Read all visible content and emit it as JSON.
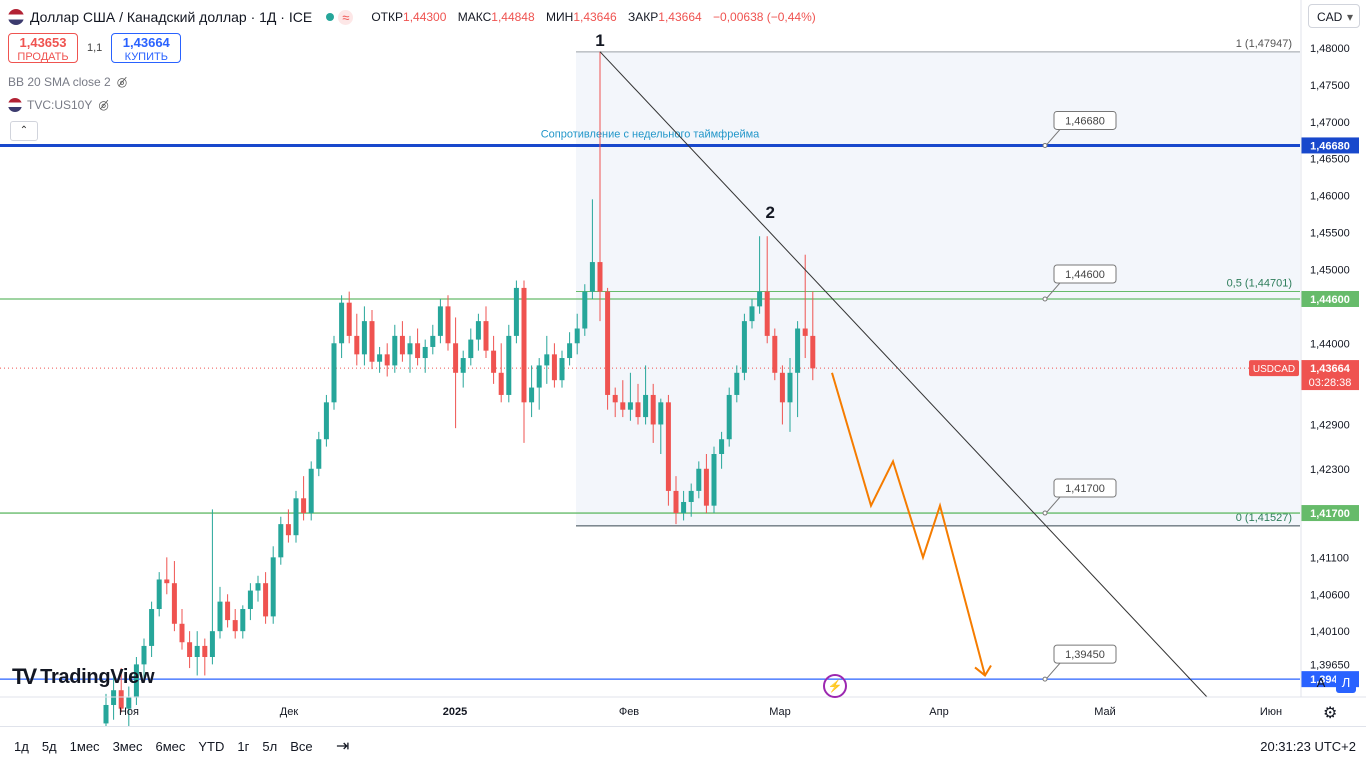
{
  "header": {
    "symbol_title": "Доллар США / Канадский доллар · 1Д · ICE",
    "open_label": "ОТКР",
    "open": "1,44300",
    "high_label": "МАКС",
    "high": "1,44848",
    "low_label": "МИН",
    "low": "1,43646",
    "close_label": "ЗАКР",
    "close": "1,43664",
    "change": "−0,00638 (−0,44%)"
  },
  "trade": {
    "sell_price": "1,43653",
    "sell_label": "ПРОДАТЬ",
    "spread": "1,1",
    "buy_price": "1,43664",
    "buy_label": "КУПИТЬ"
  },
  "indicators": [
    "BB 20 SMA close 2",
    "TVC:US10Y"
  ],
  "currency_select": "CAD",
  "logo": "TradingView",
  "timeframes": [
    "1д",
    "5д",
    "1мес",
    "3мес",
    "6мес",
    "YTD",
    "1г",
    "5л",
    "Все"
  ],
  "clock": "20:31:23 UTC+2",
  "axis_buttons": {
    "auto": "A",
    "log": "Л"
  },
  "chart_data": {
    "type": "candlestick",
    "x_ticks": [
      "Ноя",
      "Дек",
      "2025",
      "Фев",
      "Мар",
      "Апр",
      "Май",
      "Июн"
    ],
    "y_ticks": [
      "1,48000",
      "1,47500",
      "1,47000",
      "1,46500",
      "1,46000",
      "1,45500",
      "1,45000",
      "1,44000",
      "1,42900",
      "1,42300",
      "1,41100",
      "1,40600",
      "1,40100",
      "1,39650"
    ],
    "ylim": [
      1.387,
      1.487
    ],
    "price_label": {
      "symbol": "USDCAD",
      "value": "1,43664",
      "countdown": "03:28:38",
      "color": "#ef5350"
    },
    "horizontal_levels": [
      {
        "value": 1.4668,
        "label": "1,46680",
        "color": "#1848cc",
        "tag": "1,46680",
        "note": "Сопротивление с недельного таймфрейма"
      },
      {
        "value": 1.446,
        "label": "1,44600",
        "color": "#66bb6a",
        "tag": "1,44600"
      },
      {
        "value": 1.417,
        "label": "1,41700",
        "color": "#66bb6a",
        "tag": "1,41700"
      },
      {
        "value": 1.3945,
        "label": "1,39450",
        "color": "#2962ff",
        "tag": "1,39450"
      }
    ],
    "fibonacci": [
      {
        "level": "1",
        "value": 1.47947,
        "label": "1 (1,47947)"
      },
      {
        "level": "0,5",
        "value": 1.44701,
        "label": "0,5 (1,44701)"
      },
      {
        "level": "0",
        "value": 1.41527,
        "label": "0 (1,41527)"
      }
    ],
    "annotations": [
      "1",
      "2"
    ],
    "projection_path": [
      [
        1.436,
        "Mar 10"
      ],
      [
        1.418,
        "Mar 17"
      ],
      [
        1.424,
        "Mar 20"
      ],
      [
        1.411,
        "Mar 27"
      ],
      [
        1.418,
        "Mar 29"
      ],
      [
        1.395,
        "Apr 10"
      ]
    ],
    "candles": [
      {
        "o": 1.3885,
        "h": 1.3925,
        "l": 1.385,
        "c": 1.391
      },
      {
        "o": 1.391,
        "h": 1.395,
        "l": 1.389,
        "c": 1.393
      },
      {
        "o": 1.393,
        "h": 1.396,
        "l": 1.39,
        "c": 1.3905
      },
      {
        "o": 1.3905,
        "h": 1.3935,
        "l": 1.387,
        "c": 1.392
      },
      {
        "o": 1.392,
        "h": 1.3975,
        "l": 1.391,
        "c": 1.3965
      },
      {
        "o": 1.3965,
        "h": 1.4,
        "l": 1.3945,
        "c": 1.399
      },
      {
        "o": 1.399,
        "h": 1.405,
        "l": 1.3975,
        "c": 1.404
      },
      {
        "o": 1.404,
        "h": 1.409,
        "l": 1.403,
        "c": 1.408
      },
      {
        "o": 1.408,
        "h": 1.411,
        "l": 1.406,
        "c": 1.4075
      },
      {
        "o": 1.4075,
        "h": 1.4105,
        "l": 1.401,
        "c": 1.402
      },
      {
        "o": 1.402,
        "h": 1.404,
        "l": 1.3985,
        "c": 1.3995
      },
      {
        "o": 1.3995,
        "h": 1.401,
        "l": 1.396,
        "c": 1.3975
      },
      {
        "o": 1.3975,
        "h": 1.401,
        "l": 1.395,
        "c": 1.399
      },
      {
        "o": 1.399,
        "h": 1.4,
        "l": 1.395,
        "c": 1.3975
      },
      {
        "o": 1.3975,
        "h": 1.4175,
        "l": 1.3965,
        "c": 1.401
      },
      {
        "o": 1.401,
        "h": 1.407,
        "l": 1.4,
        "c": 1.405
      },
      {
        "o": 1.405,
        "h": 1.406,
        "l": 1.4015,
        "c": 1.4025
      },
      {
        "o": 1.4025,
        "h": 1.404,
        "l": 1.4,
        "c": 1.401
      },
      {
        "o": 1.401,
        "h": 1.4045,
        "l": 1.4,
        "c": 1.404
      },
      {
        "o": 1.404,
        "h": 1.4075,
        "l": 1.4025,
        "c": 1.4065
      },
      {
        "o": 1.4065,
        "h": 1.4085,
        "l": 1.405,
        "c": 1.4075
      },
      {
        "o": 1.4075,
        "h": 1.409,
        "l": 1.402,
        "c": 1.403
      },
      {
        "o": 1.403,
        "h": 1.4125,
        "l": 1.402,
        "c": 1.411
      },
      {
        "o": 1.411,
        "h": 1.4165,
        "l": 1.41,
        "c": 1.4155
      },
      {
        "o": 1.4155,
        "h": 1.4175,
        "l": 1.413,
        "c": 1.414
      },
      {
        "o": 1.414,
        "h": 1.42,
        "l": 1.413,
        "c": 1.419
      },
      {
        "o": 1.419,
        "h": 1.422,
        "l": 1.416,
        "c": 1.417
      },
      {
        "o": 1.417,
        "h": 1.424,
        "l": 1.416,
        "c": 1.423
      },
      {
        "o": 1.423,
        "h": 1.428,
        "l": 1.422,
        "c": 1.427
      },
      {
        "o": 1.427,
        "h": 1.433,
        "l": 1.426,
        "c": 1.432
      },
      {
        "o": 1.432,
        "h": 1.441,
        "l": 1.431,
        "c": 1.44
      },
      {
        "o": 1.44,
        "h": 1.4465,
        "l": 1.438,
        "c": 1.4455
      },
      {
        "o": 1.4455,
        "h": 1.447,
        "l": 1.44,
        "c": 1.441
      },
      {
        "o": 1.441,
        "h": 1.444,
        "l": 1.437,
        "c": 1.4385
      },
      {
        "o": 1.4385,
        "h": 1.445,
        "l": 1.437,
        "c": 1.443
      },
      {
        "o": 1.443,
        "h": 1.4445,
        "l": 1.4365,
        "c": 1.4375
      },
      {
        "o": 1.4375,
        "h": 1.4395,
        "l": 1.436,
        "c": 1.4385
      },
      {
        "o": 1.4385,
        "h": 1.44,
        "l": 1.4355,
        "c": 1.437
      },
      {
        "o": 1.437,
        "h": 1.4425,
        "l": 1.436,
        "c": 1.441
      },
      {
        "o": 1.441,
        "h": 1.443,
        "l": 1.4375,
        "c": 1.4385
      },
      {
        "o": 1.4385,
        "h": 1.441,
        "l": 1.436,
        "c": 1.44
      },
      {
        "o": 1.44,
        "h": 1.442,
        "l": 1.437,
        "c": 1.438
      },
      {
        "o": 1.438,
        "h": 1.4405,
        "l": 1.436,
        "c": 1.4395
      },
      {
        "o": 1.4395,
        "h": 1.4425,
        "l": 1.4385,
        "c": 1.441
      },
      {
        "o": 1.441,
        "h": 1.446,
        "l": 1.44,
        "c": 1.445
      },
      {
        "o": 1.445,
        "h": 1.4465,
        "l": 1.439,
        "c": 1.44
      },
      {
        "o": 1.44,
        "h": 1.4435,
        "l": 1.4285,
        "c": 1.436
      },
      {
        "o": 1.436,
        "h": 1.439,
        "l": 1.434,
        "c": 1.438
      },
      {
        "o": 1.438,
        "h": 1.442,
        "l": 1.437,
        "c": 1.4405
      },
      {
        "o": 1.4405,
        "h": 1.444,
        "l": 1.439,
        "c": 1.443
      },
      {
        "o": 1.443,
        "h": 1.445,
        "l": 1.438,
        "c": 1.439
      },
      {
        "o": 1.439,
        "h": 1.441,
        "l": 1.4345,
        "c": 1.436
      },
      {
        "o": 1.436,
        "h": 1.44,
        "l": 1.432,
        "c": 1.433
      },
      {
        "o": 1.433,
        "h": 1.4425,
        "l": 1.432,
        "c": 1.441
      },
      {
        "o": 1.441,
        "h": 1.4485,
        "l": 1.44,
        "c": 1.4475
      },
      {
        "o": 1.4475,
        "h": 1.4485,
        "l": 1.4265,
        "c": 1.432
      },
      {
        "o": 1.432,
        "h": 1.437,
        "l": 1.43,
        "c": 1.434
      },
      {
        "o": 1.434,
        "h": 1.438,
        "l": 1.431,
        "c": 1.437
      },
      {
        "o": 1.437,
        "h": 1.441,
        "l": 1.4345,
        "c": 1.4385
      },
      {
        "o": 1.4385,
        "h": 1.44,
        "l": 1.434,
        "c": 1.435
      },
      {
        "o": 1.435,
        "h": 1.439,
        "l": 1.434,
        "c": 1.438
      },
      {
        "o": 1.438,
        "h": 1.4415,
        "l": 1.437,
        "c": 1.44
      },
      {
        "o": 1.44,
        "h": 1.444,
        "l": 1.4385,
        "c": 1.442
      },
      {
        "o": 1.442,
        "h": 1.448,
        "l": 1.441,
        "c": 1.447
      },
      {
        "o": 1.447,
        "h": 1.4595,
        "l": 1.446,
        "c": 1.451
      },
      {
        "o": 1.451,
        "h": 1.4795,
        "l": 1.443,
        "c": 1.447
      },
      {
        "o": 1.447,
        "h": 1.4475,
        "l": 1.431,
        "c": 1.433
      },
      {
        "o": 1.433,
        "h": 1.434,
        "l": 1.43,
        "c": 1.432
      },
      {
        "o": 1.432,
        "h": 1.435,
        "l": 1.43,
        "c": 1.431
      },
      {
        "o": 1.431,
        "h": 1.436,
        "l": 1.4295,
        "c": 1.432
      },
      {
        "o": 1.432,
        "h": 1.4345,
        "l": 1.429,
        "c": 1.43
      },
      {
        "o": 1.43,
        "h": 1.437,
        "l": 1.429,
        "c": 1.433
      },
      {
        "o": 1.433,
        "h": 1.4345,
        "l": 1.4265,
        "c": 1.429
      },
      {
        "o": 1.429,
        "h": 1.4325,
        "l": 1.425,
        "c": 1.432
      },
      {
        "o": 1.432,
        "h": 1.433,
        "l": 1.418,
        "c": 1.42
      },
      {
        "o": 1.42,
        "h": 1.422,
        "l": 1.4155,
        "c": 1.417
      },
      {
        "o": 1.417,
        "h": 1.42,
        "l": 1.416,
        "c": 1.4185
      },
      {
        "o": 1.4185,
        "h": 1.421,
        "l": 1.4165,
        "c": 1.42
      },
      {
        "o": 1.42,
        "h": 1.424,
        "l": 1.419,
        "c": 1.423
      },
      {
        "o": 1.423,
        "h": 1.425,
        "l": 1.417,
        "c": 1.418
      },
      {
        "o": 1.418,
        "h": 1.426,
        "l": 1.417,
        "c": 1.425
      },
      {
        "o": 1.425,
        "h": 1.428,
        "l": 1.423,
        "c": 1.427
      },
      {
        "o": 1.427,
        "h": 1.434,
        "l": 1.426,
        "c": 1.433
      },
      {
        "o": 1.433,
        "h": 1.437,
        "l": 1.432,
        "c": 1.436
      },
      {
        "o": 1.436,
        "h": 1.444,
        "l": 1.435,
        "c": 1.443
      },
      {
        "o": 1.443,
        "h": 1.446,
        "l": 1.442,
        "c": 1.445
      },
      {
        "o": 1.445,
        "h": 1.4545,
        "l": 1.444,
        "c": 1.447
      },
      {
        "o": 1.447,
        "h": 1.4545,
        "l": 1.44,
        "c": 1.441
      },
      {
        "o": 1.441,
        "h": 1.442,
        "l": 1.435,
        "c": 1.436
      },
      {
        "o": 1.436,
        "h": 1.437,
        "l": 1.429,
        "c": 1.432
      },
      {
        "o": 1.432,
        "h": 1.438,
        "l": 1.428,
        "c": 1.436
      },
      {
        "o": 1.436,
        "h": 1.443,
        "l": 1.43,
        "c": 1.442
      },
      {
        "o": 1.442,
        "h": 1.452,
        "l": 1.438,
        "c": 1.441
      },
      {
        "o": 1.441,
        "h": 1.447,
        "l": 1.435,
        "c": 1.4366
      }
    ]
  }
}
